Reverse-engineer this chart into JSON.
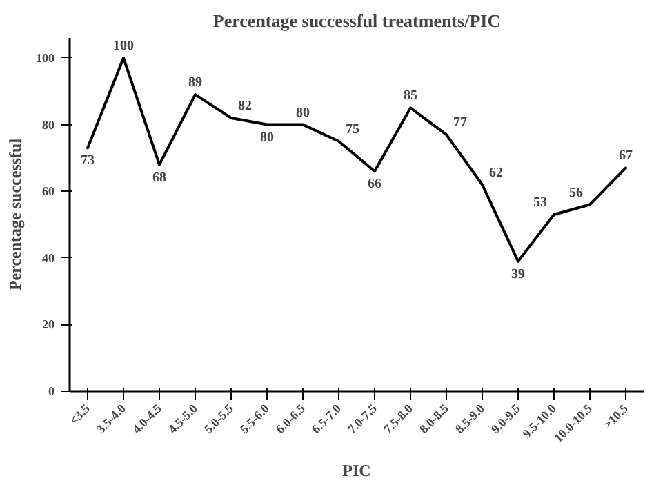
{
  "chart_data": {
    "type": "line",
    "title": "Percentage successful treatments/PIC",
    "xlabel": "PIC",
    "ylabel": "Percentage successful",
    "categories": [
      "<3.5",
      "3.5-4.0",
      "4.0-4.5",
      "4.5-5.0",
      "5.0-5.5",
      "5.5-6.0",
      "6.0-6.5",
      "6.5-7.0",
      "7.0-7.5",
      "7.5-8.0",
      "8.0-8.5",
      "8.5-9.0",
      "9.0-9.5",
      "9.5-10.0",
      "10.0-10.5",
      ">10.5"
    ],
    "series": [
      {
        "color": "#000000",
        "values": [
          73,
          100,
          68,
          89,
          82,
          80,
          80,
          75,
          66,
          85,
          77,
          62,
          39,
          53,
          56,
          67
        ]
      }
    ],
    "ylim": [
      0,
      106
    ],
    "yticks": [
      0,
      20,
      40,
      60,
      80,
      100
    ],
    "data_labels": true,
    "grid": false,
    "marker": "none",
    "line_style": "solid"
  }
}
